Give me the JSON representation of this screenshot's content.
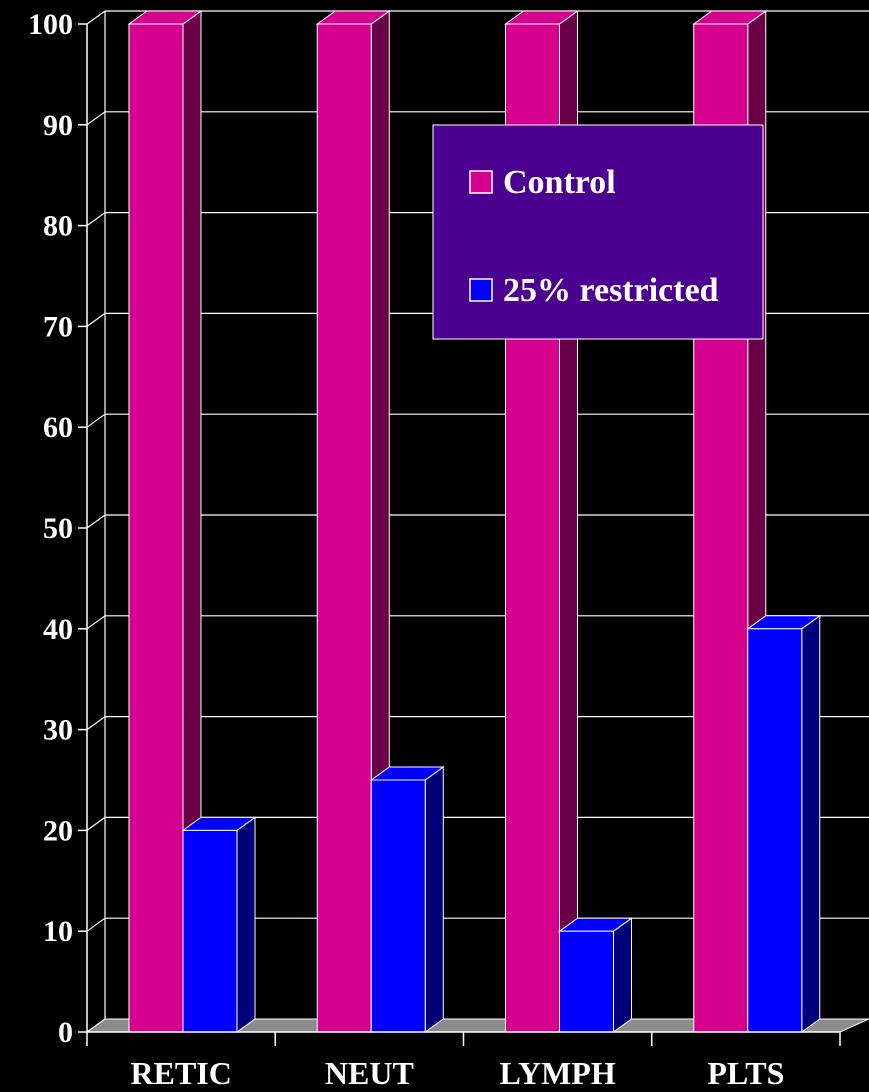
{
  "chart_data": {
    "type": "bar",
    "categories": [
      "RETIC",
      "NEUT",
      "LYMPH",
      "PLTS"
    ],
    "series": [
      {
        "name": "Control",
        "values": [
          100,
          100,
          100,
          100
        ]
      },
      {
        "name": "25% restricted",
        "values": [
          20,
          25,
          10,
          40
        ]
      }
    ],
    "ylim": [
      0,
      100
    ],
    "yticks": [
      0,
      10,
      20,
      30,
      40,
      50,
      60,
      70,
      80,
      90,
      100
    ],
    "grid": true,
    "legend": "top-right",
    "style": "3d",
    "colors": {
      "background": "#000000",
      "control_front": "#d6008f",
      "control_side": "#6a0048",
      "restricted_front": "#0000ff",
      "restricted_side": "#00007a",
      "floor": "#8c8c8c",
      "legend_bg": "#4b0090",
      "grid": "#ffffff"
    }
  }
}
